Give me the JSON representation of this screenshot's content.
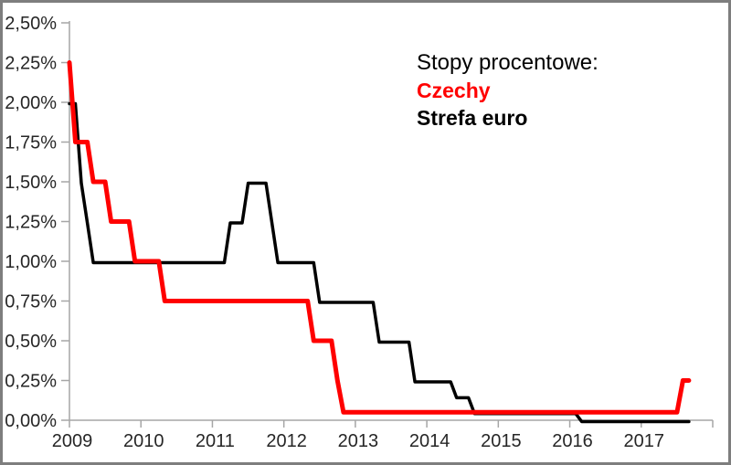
{
  "legend": {
    "title": "Stopy procentowe:"
  },
  "colors": {
    "czechy_line": "#ff0000",
    "strefa_euro_line": "#000000",
    "axis_line": "#a6a6a6",
    "axis_text": "#262626",
    "frame_border": "#7e7e7e",
    "background": "#ffffff"
  },
  "chart_data": {
    "type": "line",
    "title": "Stopy procentowe:",
    "grid": false,
    "legend_position": "top-right-inside",
    "legend_entries": [
      "Czechy",
      "Strefa euro"
    ],
    "x_axis": {
      "tick_labels": [
        "2009",
        "2010",
        "2011",
        "2012",
        "2013",
        "2014",
        "2015",
        "2016",
        "2017"
      ],
      "range_years": [
        2009,
        2018
      ],
      "sampling": "monthly"
    },
    "y_axis": {
      "min": 0,
      "max": 2.5,
      "step": 0.25,
      "unit": "%",
      "tick_labels": [
        "0,00%",
        "0,25%",
        "0,50%",
        "0,75%",
        "1,00%",
        "1,25%",
        "1,50%",
        "1,75%",
        "2,00%",
        "2,25%",
        "2,50%"
      ]
    },
    "series": [
      {
        "name": "Strefa euro",
        "color": "#000000",
        "stroke_width": 3.5,
        "rate_changes": [
          {
            "date": "2009-01",
            "rate": 2.0
          },
          {
            "date": "2009-03",
            "rate": 1.5
          },
          {
            "date": "2009-04",
            "rate": 1.25
          },
          {
            "date": "2009-05",
            "rate": 1.0
          },
          {
            "date": "2011-04",
            "rate": 1.25
          },
          {
            "date": "2011-07",
            "rate": 1.5
          },
          {
            "date": "2011-11",
            "rate": 1.25
          },
          {
            "date": "2011-12",
            "rate": 1.0
          },
          {
            "date": "2012-07",
            "rate": 0.75
          },
          {
            "date": "2013-05",
            "rate": 0.5
          },
          {
            "date": "2013-11",
            "rate": 0.25
          },
          {
            "date": "2014-06",
            "rate": 0.15
          },
          {
            "date": "2014-09",
            "rate": 0.05
          },
          {
            "date": "2016-03",
            "rate": 0.0
          }
        ],
        "end_date": "2017-09"
      },
      {
        "name": "Czechy",
        "color": "#ff0000",
        "stroke_width": 5,
        "rate_changes": [
          {
            "date": "2009-01",
            "rate": 2.25
          },
          {
            "date": "2009-02",
            "rate": 1.75
          },
          {
            "date": "2009-05",
            "rate": 1.5
          },
          {
            "date": "2009-08",
            "rate": 1.25
          },
          {
            "date": "2009-12",
            "rate": 1.0
          },
          {
            "date": "2010-05",
            "rate": 0.75
          },
          {
            "date": "2012-06",
            "rate": 0.5
          },
          {
            "date": "2012-10",
            "rate": 0.25
          },
          {
            "date": "2012-11",
            "rate": 0.05
          },
          {
            "date": "2017-08",
            "rate": 0.25
          }
        ],
        "end_date": "2017-09"
      }
    ]
  }
}
